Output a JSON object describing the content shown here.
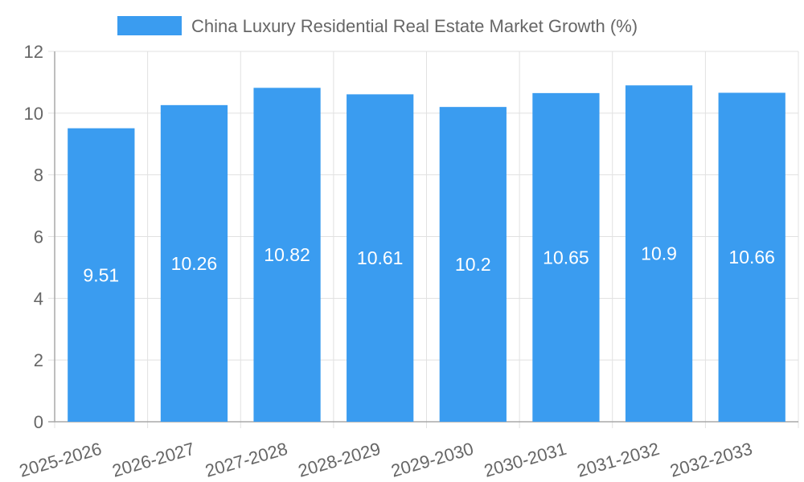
{
  "chart_data": {
    "type": "bar",
    "title": "",
    "xlabel": "",
    "ylabel": "",
    "categories": [
      "2025-2026",
      "2026-2027",
      "2027-2028",
      "2028-2029",
      "2029-2030",
      "2030-2031",
      "2031-2032",
      "2032-2033"
    ],
    "series": [
      {
        "name": "China Luxury Residential Real Estate Market Growth (%)",
        "values": [
          9.51,
          10.26,
          10.82,
          10.61,
          10.2,
          10.65,
          10.9,
          10.66
        ],
        "color": "#3a9cf0"
      }
    ],
    "yticks": [
      0,
      2,
      4,
      6,
      8,
      10,
      12
    ],
    "ylim": [
      0,
      12
    ],
    "grid": true,
    "legend": "top-center",
    "data_labels": "inside-center"
  },
  "colors": {
    "bar": "#3a9cf0",
    "grid": "#e1e1e1",
    "axis": "#a8a8a8",
    "tick_text": "#666666",
    "label_text": "#ffffff"
  }
}
